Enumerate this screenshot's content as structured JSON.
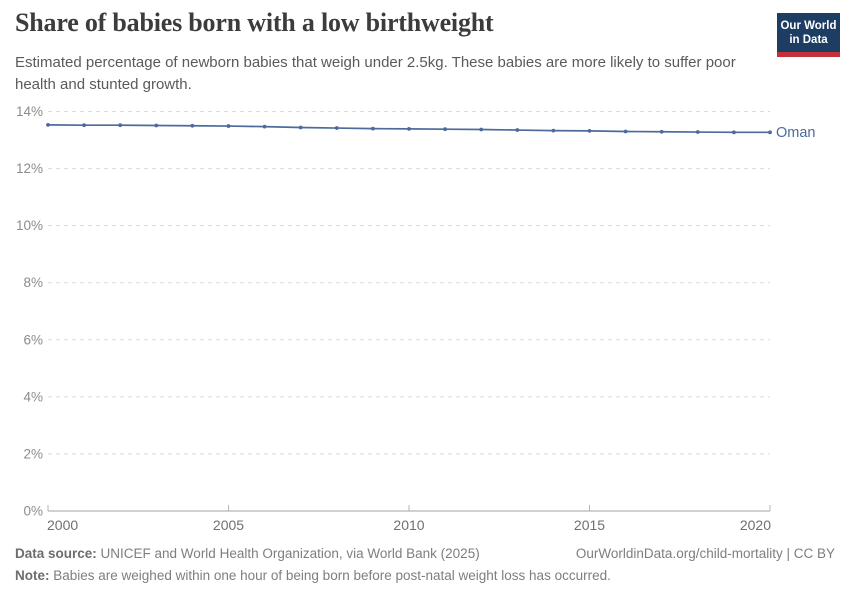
{
  "header": {
    "title": "Share of babies born with a low birthweight",
    "subtitle": "Estimated percentage of newborn babies that weigh under 2.5kg. These babies are more likely to suffer poor health and stunted growth.",
    "logo": {
      "line1": "Our World",
      "line2": "in Data"
    }
  },
  "chart_data": {
    "type": "line",
    "title": "Share of babies born with a low birthweight",
    "entity": "Oman",
    "x": [
      2000,
      2001,
      2002,
      2003,
      2004,
      2005,
      2006,
      2007,
      2008,
      2009,
      2010,
      2011,
      2012,
      2013,
      2014,
      2015,
      2016,
      2017,
      2018,
      2019,
      2020
    ],
    "series": [
      {
        "name": "Oman",
        "values": [
          13.53,
          13.52,
          13.52,
          13.51,
          13.5,
          13.49,
          13.47,
          13.44,
          13.42,
          13.4,
          13.39,
          13.38,
          13.37,
          13.35,
          13.33,
          13.32,
          13.3,
          13.29,
          13.28,
          13.27,
          13.27
        ]
      }
    ],
    "x_ticks": [
      2000,
      2005,
      2010,
      2015,
      2020
    ],
    "y_ticks": [
      0,
      2,
      4,
      6,
      8,
      10,
      12,
      14
    ],
    "y_tick_suffix": "%",
    "xlim": [
      2000,
      2020
    ],
    "ylim": [
      0,
      14
    ],
    "grid": "horizontal-dashed",
    "legend_position": "end-of-line"
  },
  "colors": {
    "line": "#4c6a9c",
    "entity_label": "#4c6a9c",
    "grid": "#dadada",
    "axis": "#a3a3a3",
    "x_tick_mark": "#b5b5b5",
    "y_tick_label": "#8c8c8c",
    "x_tick_label": "#707070",
    "logo_background": "#1d3d63",
    "logo_stripe": "#c5303b"
  },
  "footer": {
    "datasource_label": "Data source:",
    "datasource_text": " UNICEF and World Health Organization, via World Bank (2025)",
    "link": "OurWorldinData.org/child-mortality | CC BY",
    "note_label": "Note:",
    "note_text": " Babies are weighed within one hour of being born before post-natal weight loss has occurred."
  }
}
